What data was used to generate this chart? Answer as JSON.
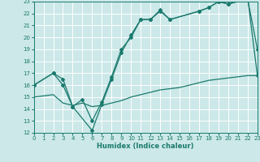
{
  "xlabel": "Humidex (Indice chaleur)",
  "bg_color": "#cce8e8",
  "grid_color": "#ffffff",
  "line_color": "#1a7a6e",
  "xlim": [
    0,
    23
  ],
  "ylim": [
    12,
    23
  ],
  "xticks": [
    0,
    1,
    2,
    3,
    4,
    5,
    6,
    7,
    8,
    9,
    10,
    11,
    12,
    13,
    14,
    15,
    16,
    17,
    18,
    19,
    20,
    21,
    22,
    23
  ],
  "yticks": [
    12,
    13,
    14,
    15,
    16,
    17,
    18,
    19,
    20,
    21,
    22,
    23
  ],
  "line1": {
    "x": [
      0,
      2,
      3,
      4,
      6,
      7,
      8,
      9,
      10,
      11,
      12,
      13,
      14,
      17,
      18,
      19,
      20,
      22,
      23
    ],
    "y": [
      16,
      17,
      16,
      14.2,
      12.2,
      14.4,
      16.5,
      18.7,
      20.2,
      21.5,
      21.5,
      22.2,
      21.5,
      22.2,
      22.5,
      23.0,
      22.8,
      23.2,
      19.0
    ]
  },
  "line2": {
    "x": [
      0,
      2,
      3,
      4,
      5,
      6,
      7,
      8,
      9,
      10,
      11,
      12,
      13,
      14,
      17,
      18,
      19,
      20,
      22,
      23
    ],
    "y": [
      16,
      17,
      16.5,
      14.2,
      14.8,
      13.0,
      14.6,
      16.7,
      19.0,
      20.0,
      21.5,
      21.5,
      22.3,
      21.5,
      22.2,
      22.5,
      23.0,
      22.8,
      23.3,
      16.8
    ]
  },
  "line3": {
    "x": [
      0,
      1,
      2,
      3,
      4,
      5,
      6,
      7,
      8,
      9,
      10,
      11,
      12,
      13,
      14,
      15,
      16,
      17,
      18,
      19,
      20,
      21,
      22,
      23
    ],
    "y": [
      15.0,
      15.1,
      15.2,
      14.5,
      14.3,
      14.5,
      14.2,
      14.3,
      14.5,
      14.7,
      15.0,
      15.2,
      15.4,
      15.6,
      15.7,
      15.8,
      16.0,
      16.2,
      16.4,
      16.5,
      16.6,
      16.7,
      16.8,
      16.8
    ]
  }
}
